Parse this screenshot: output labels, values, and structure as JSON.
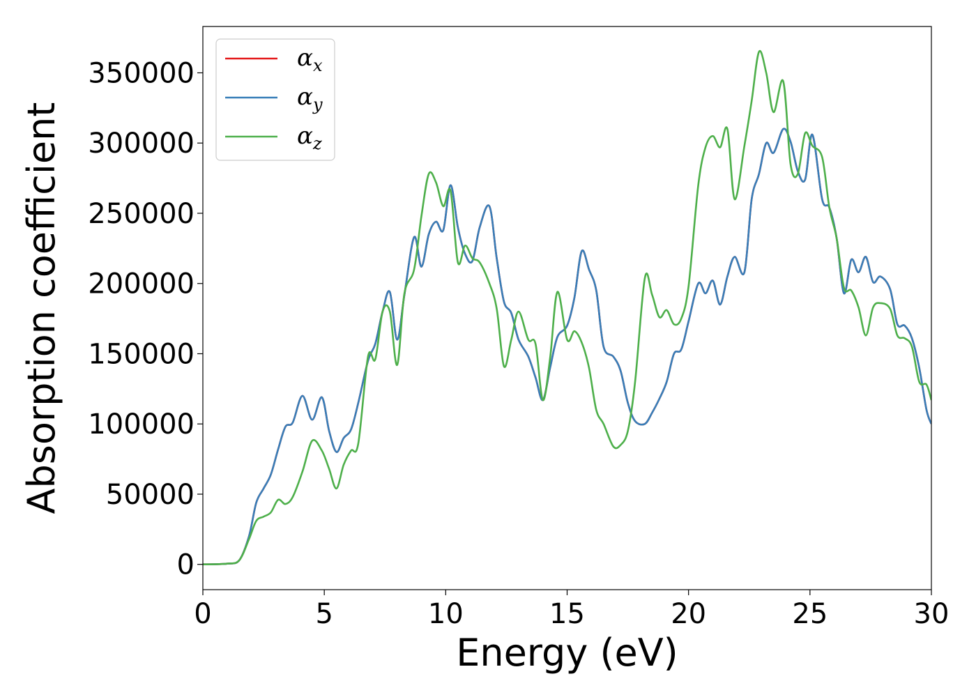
{
  "chart_data": {
    "type": "line",
    "xlabel": "Energy (eV)",
    "ylabel": "Absorption coefficient",
    "xlim": [
      0,
      30
    ],
    "ylim": [
      -18000,
      383000
    ],
    "xticks": [
      0,
      5,
      10,
      15,
      20,
      25,
      30
    ],
    "xtick_labels": [
      "0",
      "5",
      "10",
      "15",
      "20",
      "25",
      "30"
    ],
    "yticks": [
      0,
      50000,
      100000,
      150000,
      200000,
      250000,
      300000,
      350000
    ],
    "ytick_labels": [
      "0",
      "50000",
      "100000",
      "150000",
      "200000",
      "250000",
      "300000",
      "350000"
    ],
    "grid": false,
    "legend": "top-left",
    "x": [
      0,
      1,
      1.5,
      1.9,
      2.2,
      2.5,
      2.8,
      3.1,
      3.4,
      3.7,
      4.1,
      4.5,
      4.9,
      5.2,
      5.5,
      5.8,
      6.1,
      6.4,
      6.8,
      7.1,
      7.4,
      7.7,
      8.0,
      8.3,
      8.7,
      9.0,
      9.3,
      9.6,
      9.9,
      10.2,
      10.5,
      10.8,
      11.1,
      11.4,
      11.8,
      12.1,
      12.4,
      12.7,
      13.0,
      13.4,
      13.7,
      14.0,
      14.3,
      14.6,
      15.0,
      15.3,
      15.6,
      15.9,
      16.2,
      16.5,
      16.9,
      17.2,
      17.5,
      17.8,
      18.2,
      18.5,
      18.8,
      19.1,
      19.4,
      19.7,
      20.0,
      20.4,
      20.7,
      21.0,
      21.3,
      21.6,
      21.9,
      22.3,
      22.6,
      22.9,
      23.2,
      23.5,
      23.9,
      24.2,
      24.5,
      24.8,
      25.1,
      25.5,
      25.8,
      26.1,
      26.4,
      26.7,
      27.0,
      27.3,
      27.6,
      27.9,
      28.3,
      28.6,
      28.9,
      29.2,
      29.5,
      29.8,
      30
    ],
    "series": [
      {
        "name": "α_x",
        "color": "#e41a1c",
        "values": [
          0,
          500,
          3000,
          20000,
          44000,
          54000,
          64000,
          82000,
          98000,
          101000,
          120000,
          103000,
          119000,
          95000,
          80000,
          90000,
          96000,
          115000,
          145000,
          157000,
          180000,
          194000,
          160000,
          192000,
          233000,
          212000,
          235000,
          244000,
          238000,
          270000,
          240000,
          221000,
          216000,
          240000,
          255000,
          218000,
          187000,
          179000,
          160000,
          148000,
          133000,
          117000,
          140000,
          162000,
          170000,
          190000,
          223000,
          210000,
          195000,
          155000,
          148000,
          138000,
          115000,
          102000,
          100000,
          108000,
          118000,
          130000,
          150000,
          153000,
          173000,
          200000,
          193000,
          202000,
          185000,
          205000,
          219000,
          208000,
          260000,
          278000,
          300000,
          293000,
          310000,
          301000,
          280000,
          274000,
          306000,
          260000,
          254000,
          232000,
          193000,
          217000,
          208000,
          219000,
          201000,
          205000,
          196000,
          171000,
          170000,
          161000,
          140000,
          110000,
          100000
        ]
      },
      {
        "name": "α_y",
        "color": "#377eb8",
        "values": [
          0,
          500,
          3000,
          20000,
          44000,
          54000,
          64000,
          82000,
          98000,
          101000,
          120000,
          103000,
          119000,
          95000,
          80000,
          90000,
          96000,
          115000,
          145000,
          157000,
          180000,
          194000,
          160000,
          192000,
          233000,
          212000,
          235000,
          244000,
          238000,
          270000,
          240000,
          221000,
          216000,
          240000,
          255000,
          218000,
          187000,
          179000,
          160000,
          148000,
          133000,
          117000,
          140000,
          162000,
          170000,
          190000,
          223000,
          210000,
          195000,
          155000,
          148000,
          138000,
          115000,
          102000,
          100000,
          108000,
          118000,
          130000,
          150000,
          153000,
          173000,
          200000,
          193000,
          202000,
          185000,
          205000,
          219000,
          208000,
          260000,
          278000,
          300000,
          293000,
          310000,
          301000,
          280000,
          274000,
          306000,
          260000,
          254000,
          232000,
          193000,
          217000,
          208000,
          219000,
          201000,
          205000,
          196000,
          171000,
          170000,
          161000,
          140000,
          110000,
          100000
        ]
      },
      {
        "name": "α_z",
        "color": "#4daf4a",
        "values": [
          0,
          500,
          3000,
          18000,
          31000,
          34000,
          37000,
          46000,
          43000,
          48000,
          66000,
          88000,
          81000,
          68000,
          54000,
          71000,
          81000,
          86000,
          148000,
          146000,
          180000,
          180000,
          142000,
          193000,
          210000,
          248000,
          278000,
          272000,
          255000,
          266000,
          215000,
          227000,
          218000,
          215000,
          200000,
          182000,
          141000,
          160000,
          180000,
          160000,
          157000,
          117000,
          147000,
          194000,
          160000,
          166000,
          158000,
          140000,
          110000,
          100000,
          84000,
          85000,
          95000,
          130000,
          204000,
          192000,
          176000,
          181000,
          171000,
          175000,
          198000,
          270000,
          297000,
          305000,
          297000,
          310000,
          260000,
          298000,
          330000,
          365000,
          350000,
          322000,
          344000,
          285000,
          278000,
          307000,
          298000,
          290000,
          254000,
          232000,
          197000,
          195000,
          183000,
          163000,
          183000,
          186000,
          182000,
          163000,
          161000,
          155000,
          130000,
          128000,
          117000
        ]
      }
    ]
  }
}
